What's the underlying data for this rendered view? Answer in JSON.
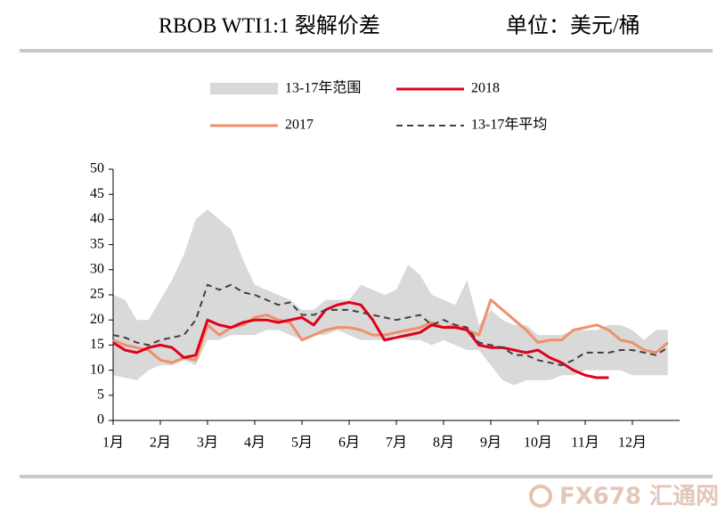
{
  "chart_data": {
    "type": "line",
    "title": "RBOB WTI1:1 裂解价差",
    "unit": "单位：美元/桶",
    "x": [
      1,
      1.25,
      1.5,
      1.75,
      2,
      2.25,
      2.5,
      2.75,
      3,
      3.25,
      3.5,
      3.75,
      4,
      4.25,
      4.5,
      4.75,
      5,
      5.25,
      5.5,
      5.75,
      6,
      6.25,
      6.5,
      6.75,
      7,
      7.25,
      7.5,
      7.75,
      8,
      8.25,
      8.5,
      8.75,
      9,
      9.25,
      9.5,
      9.75,
      10,
      10.25,
      10.5,
      10.75,
      11,
      11.25,
      11.5,
      11.75,
      12,
      12.25,
      12.5,
      12.75
    ],
    "range": {
      "name": "13-17年范围",
      "color": "#d9d9d9",
      "upper": [
        25,
        24,
        20,
        20,
        24,
        28,
        33,
        40,
        42,
        40,
        38,
        32,
        27,
        26,
        25,
        24,
        22,
        22,
        24,
        24,
        24,
        27,
        26,
        25,
        26,
        31,
        29,
        25,
        24,
        23,
        28,
        19,
        22,
        20,
        19,
        19,
        17,
        17,
        17,
        18,
        18,
        18,
        19,
        19,
        18,
        16,
        18,
        18
      ],
      "lower": [
        9,
        8.5,
        8,
        10,
        11,
        11,
        12,
        11,
        16,
        16,
        17,
        17,
        17,
        18,
        18,
        17,
        16,
        17,
        17,
        18,
        17,
        16,
        16,
        16,
        17,
        16,
        16,
        15,
        16,
        15,
        14,
        14,
        11,
        8,
        7,
        8,
        8,
        8,
        9,
        9,
        10,
        10,
        10,
        10,
        9,
        9,
        9,
        9
      ]
    },
    "series": [
      {
        "name": "2018",
        "color": "#e0001b",
        "dash": false,
        "values": [
          15.5,
          14,
          13.5,
          14.5,
          15,
          14.5,
          12.5,
          13,
          20,
          19,
          18.5,
          19.5,
          20,
          20,
          19.5,
          20,
          20.5,
          19,
          22,
          23,
          23.5,
          23,
          20,
          16,
          16.5,
          17,
          17.5,
          19,
          18.5,
          18.5,
          18,
          15,
          14.5,
          14.5,
          14,
          13.5,
          14,
          12.5,
          11.5,
          10,
          9,
          8.5,
          8.5,
          null,
          null,
          null,
          null,
          null
        ]
      },
      {
        "name": "2017",
        "color": "#f0906a",
        "dash": false,
        "values": [
          16,
          15,
          14.5,
          14,
          12,
          11.5,
          12.5,
          12,
          19,
          17,
          18.5,
          19,
          20.5,
          21,
          20,
          19.5,
          16,
          17,
          18,
          18.5,
          18.5,
          18,
          17,
          17,
          17.5,
          18,
          18.5,
          19.5,
          18.5,
          19,
          18,
          17,
          24,
          22,
          20,
          18,
          15.5,
          16,
          16,
          18,
          18.5,
          19,
          18,
          16,
          15.5,
          14,
          13.5,
          15.5
        ]
      },
      {
        "name": "13-17年平均",
        "color": "#404040",
        "dash": true,
        "values": [
          17,
          16.5,
          15.5,
          15,
          16,
          16.5,
          17,
          20,
          27,
          26,
          27,
          25.5,
          25,
          24,
          23,
          23.5,
          21,
          21,
          22,
          22,
          22,
          21.5,
          21,
          20.5,
          20,
          20.5,
          21,
          19,
          20,
          19,
          18.5,
          15.5,
          15,
          14.5,
          13,
          13,
          12,
          11.5,
          11,
          12,
          13.5,
          13.5,
          13.5,
          14,
          14,
          13.5,
          13,
          14.5
        ]
      }
    ],
    "xlim": [
      1,
      13
    ],
    "xticks": [
      {
        "value": 1,
        "label": "1月"
      },
      {
        "value": 2,
        "label": "2月"
      },
      {
        "value": 3,
        "label": "3月"
      },
      {
        "value": 4,
        "label": "4月"
      },
      {
        "value": 5,
        "label": "5月"
      },
      {
        "value": 6,
        "label": "6月"
      },
      {
        "value": 7,
        "label": "7月"
      },
      {
        "value": 8,
        "label": "8月"
      },
      {
        "value": 9,
        "label": "9月"
      },
      {
        "value": 10,
        "label": "10月"
      },
      {
        "value": 11,
        "label": "11月"
      },
      {
        "value": 12,
        "label": "12月"
      }
    ],
    "ylim": [
      0,
      50
    ],
    "yticks": [
      0,
      5,
      10,
      15,
      20,
      25,
      30,
      35,
      40,
      45,
      50
    ],
    "grid": false
  },
  "watermark": "FX678 汇通网"
}
